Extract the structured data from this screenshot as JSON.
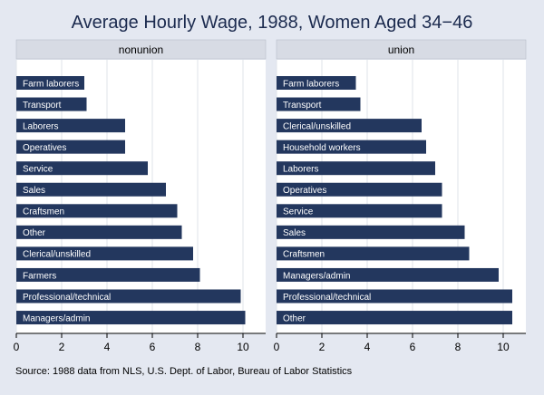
{
  "title": "Average Hourly Wage, 1988, Women Aged 34−46",
  "note": "Source:  1988 data from NLS, U.S. Dept. of Labor, Bureau of Labor Statistics",
  "colors": {
    "bar": "#23375e",
    "background": "#e4e8f1",
    "panel": "#ffffff",
    "header": "#d7dbe4",
    "title": "#1b2a4e"
  },
  "chart_data": [
    {
      "type": "bar",
      "orientation": "horizontal",
      "panel_label": "nonunion",
      "categories": [
        "Farm laborers",
        "Transport",
        "Laborers",
        "Operatives",
        "Service",
        "Sales",
        "Craftsmen",
        "Other",
        "Clerical/unskilled",
        "Farmers",
        "Professional/technical",
        "Managers/admin"
      ],
      "values": [
        3.0,
        3.1,
        4.8,
        4.8,
        5.8,
        6.6,
        7.1,
        7.3,
        7.8,
        8.1,
        9.9,
        10.1
      ],
      "xlim": [
        0,
        11
      ],
      "xticks": [
        "0",
        "2",
        "4",
        "6",
        "8",
        "10"
      ],
      "grid": true
    },
    {
      "type": "bar",
      "orientation": "horizontal",
      "panel_label": "union",
      "categories": [
        "Farm laborers",
        "Transport",
        "Clerical/unskilled",
        "Household workers",
        "Laborers",
        "Operatives",
        "Service",
        "Sales",
        "Craftsmen",
        "Managers/admin",
        "Professional/technical",
        "Other"
      ],
      "values": [
        3.5,
        3.7,
        6.4,
        6.6,
        7.0,
        7.3,
        7.3,
        8.3,
        8.5,
        9.8,
        10.4,
        10.4
      ],
      "xlim": [
        0,
        11
      ],
      "xticks": [
        "0",
        "2",
        "4",
        "6",
        "8",
        "10"
      ],
      "grid": true
    }
  ]
}
